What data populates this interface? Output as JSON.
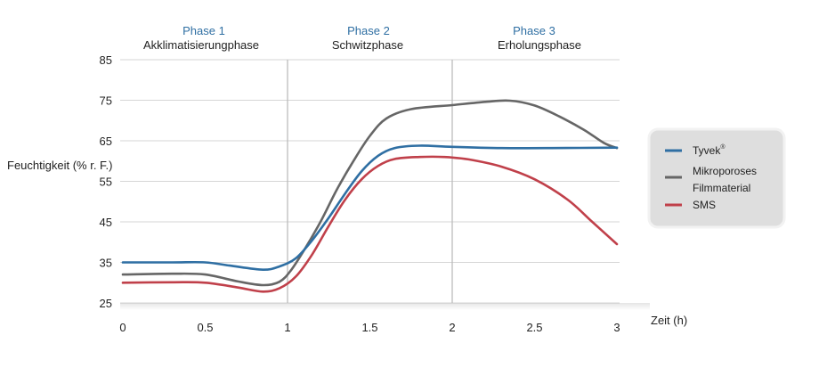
{
  "chart_data": {
    "type": "line",
    "xlabel": "Zeit (h)",
    "ylabel": "Feuchtigkeit (% r. F.)",
    "xlim": [
      0,
      3
    ],
    "ylim": [
      25,
      85
    ],
    "x_ticks": [
      "0",
      "0.5",
      "1",
      "1.5",
      "2",
      "2.5",
      "3"
    ],
    "y_ticks": [
      "85",
      "75",
      "65",
      "55",
      "45",
      "35",
      "25"
    ],
    "grid": "horizontal",
    "phases": [
      {
        "number": "Phase 1",
        "name": "Akklimatisierungphase"
      },
      {
        "number": "Phase 2",
        "name": "Schwitzphase"
      },
      {
        "number": "Phase 3",
        "name": "Erholungsphase"
      }
    ],
    "phase_boundaries": [
      1,
      2
    ],
    "legend": {
      "placement": "right",
      "entries": [
        "Tyvek",
        "Mikroporoses Filmmaterial",
        "SMS"
      ],
      "tyvek_sup": "®",
      "film_line1": "Mikroporoses",
      "film_line2": "Filmmaterial"
    },
    "series": [
      {
        "name": "Tyvek",
        "color": "#2f6fa3",
        "points": [
          [
            0,
            35
          ],
          [
            0.3,
            35
          ],
          [
            0.5,
            35
          ],
          [
            0.65,
            34.2
          ],
          [
            0.85,
            33.2
          ],
          [
            0.95,
            34
          ],
          [
            1.05,
            36
          ],
          [
            1.15,
            40.5
          ],
          [
            1.25,
            46
          ],
          [
            1.35,
            52
          ],
          [
            1.45,
            57.5
          ],
          [
            1.55,
            61.3
          ],
          [
            1.65,
            63.2
          ],
          [
            1.8,
            63.8
          ],
          [
            2.0,
            63.5
          ],
          [
            2.3,
            63.2
          ],
          [
            2.6,
            63.2
          ],
          [
            3.0,
            63.3
          ]
        ]
      },
      {
        "name": "Mikroporoses Filmmaterial",
        "color": "#666666",
        "points": [
          [
            0,
            32
          ],
          [
            0.3,
            32.2
          ],
          [
            0.5,
            32
          ],
          [
            0.7,
            30.3
          ],
          [
            0.85,
            29.4
          ],
          [
            0.95,
            30.2
          ],
          [
            1.02,
            33
          ],
          [
            1.1,
            38
          ],
          [
            1.2,
            45
          ],
          [
            1.3,
            53
          ],
          [
            1.4,
            60
          ],
          [
            1.5,
            66.2
          ],
          [
            1.6,
            70.5
          ],
          [
            1.75,
            72.8
          ],
          [
            2.0,
            73.8
          ],
          [
            2.2,
            74.6
          ],
          [
            2.35,
            74.9
          ],
          [
            2.5,
            73.7
          ],
          [
            2.65,
            71
          ],
          [
            2.8,
            67.7
          ],
          [
            2.92,
            64.5
          ],
          [
            3.0,
            63.2
          ]
        ]
      },
      {
        "name": "SMS",
        "color": "#c0404a",
        "points": [
          [
            0,
            30
          ],
          [
            0.3,
            30.1
          ],
          [
            0.5,
            30
          ],
          [
            0.7,
            28.8
          ],
          [
            0.85,
            27.8
          ],
          [
            0.95,
            28.6
          ],
          [
            1.05,
            31.5
          ],
          [
            1.15,
            37
          ],
          [
            1.25,
            44
          ],
          [
            1.35,
            50.5
          ],
          [
            1.45,
            55.5
          ],
          [
            1.55,
            58.8
          ],
          [
            1.65,
            60.5
          ],
          [
            1.8,
            61
          ],
          [
            1.95,
            61
          ],
          [
            2.1,
            60.4
          ],
          [
            2.3,
            58.6
          ],
          [
            2.5,
            55.5
          ],
          [
            2.7,
            50.5
          ],
          [
            2.85,
            45
          ],
          [
            3.0,
            39.5
          ]
        ]
      }
    ]
  }
}
